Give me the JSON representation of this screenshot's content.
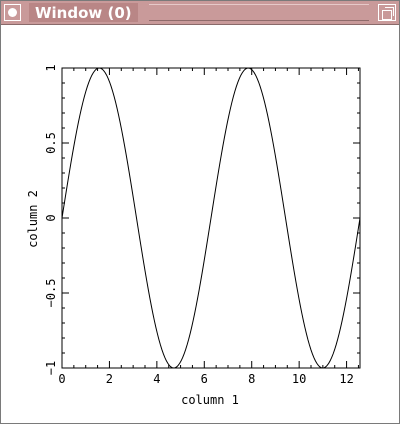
{
  "window": {
    "title": "Window (0)",
    "close_icon": "circle-dot-icon",
    "maximize_icon": "maximize-icon"
  },
  "chart_data": {
    "type": "line",
    "xlabel": "column 1",
    "ylabel": "column 2",
    "xlim": [
      0,
      12.566
    ],
    "ylim": [
      -1,
      1
    ],
    "x_ticks": [
      0,
      2,
      4,
      6,
      8,
      10,
      12
    ],
    "y_ticks": [
      -1,
      -0.5,
      0,
      0.5,
      1
    ],
    "x_tick_labels": [
      "0",
      "2",
      "4",
      "6",
      "8",
      "10",
      "12"
    ],
    "y_tick_labels": [
      "−1",
      "−0.5",
      "0",
      "0.5",
      "1"
    ],
    "series": [
      {
        "function": "sin(x)",
        "x_range": [
          0,
          12.566
        ],
        "samples": 200
      }
    ],
    "grid": false
  }
}
